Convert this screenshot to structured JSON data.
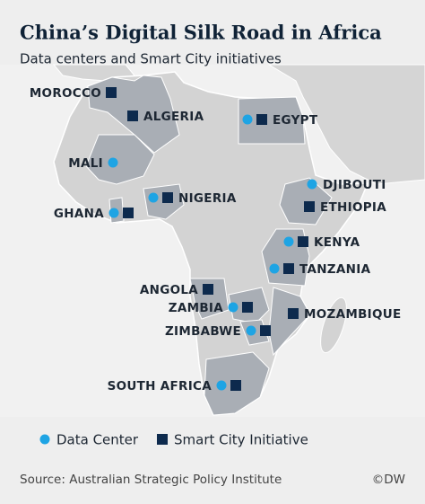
{
  "header": {
    "title": "China’s Digital Silk Road in Africa",
    "subtitle": "Data centers and Smart City initiatives"
  },
  "countries": [
    {
      "name": "MOROCCO",
      "data_center": false,
      "smart_city": true
    },
    {
      "name": "ALGERIA",
      "data_center": false,
      "smart_city": true
    },
    {
      "name": "EGYPT",
      "data_center": true,
      "smart_city": true
    },
    {
      "name": "MALI",
      "data_center": true,
      "smart_city": false
    },
    {
      "name": "NIGERIA",
      "data_center": true,
      "smart_city": true
    },
    {
      "name": "GHANA",
      "data_center": true,
      "smart_city": true
    },
    {
      "name": "DJIBOUTI",
      "data_center": true,
      "smart_city": false
    },
    {
      "name": "ETHIOPIA",
      "data_center": false,
      "smart_city": true
    },
    {
      "name": "KENYA",
      "data_center": true,
      "smart_city": true
    },
    {
      "name": "TANZANIA",
      "data_center": true,
      "smart_city": true
    },
    {
      "name": "ANGOLA",
      "data_center": false,
      "smart_city": true
    },
    {
      "name": "ZAMBIA",
      "data_center": true,
      "smart_city": true
    },
    {
      "name": "MOZAMBIQUE",
      "data_center": false,
      "smart_city": true
    },
    {
      "name": "ZIMBABWE",
      "data_center": true,
      "smart_city": true
    },
    {
      "name": "SOUTH AFRICA",
      "data_center": true,
      "smart_city": true
    }
  ],
  "legend": {
    "data_center": "Data Center",
    "smart_city": "Smart City Initiative",
    "data_center_color": "#1ea4e4",
    "smart_city_color": "#0d2a4d"
  },
  "footer": {
    "source": "Source: Australian Strategic Policy Institute",
    "credit": "©DW"
  }
}
